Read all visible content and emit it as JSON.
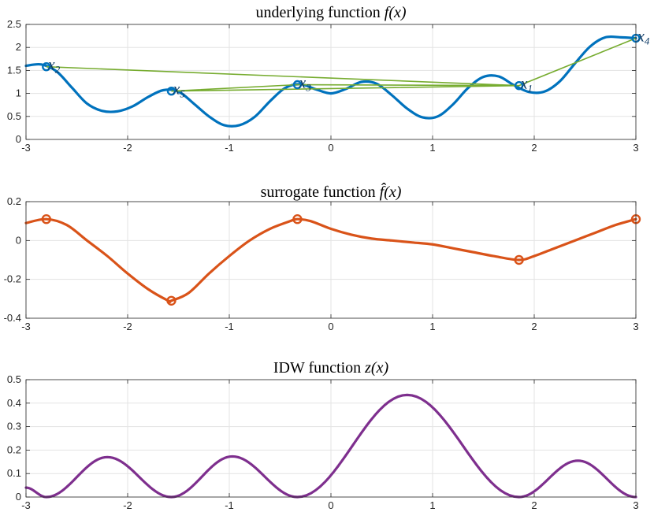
{
  "chart_data": [
    {
      "type": "line",
      "title": "underlying function",
      "title_math": "f(x)",
      "xlim": [
        -3,
        3
      ],
      "ylim": [
        0,
        2.5
      ],
      "xticks": [
        -3,
        -2,
        -1,
        0,
        1,
        2,
        3
      ],
      "yticks": [
        0,
        0.5,
        1,
        1.5,
        2,
        2.5
      ],
      "xtick_labels": [
        "-3",
        "-2",
        "-1",
        "0",
        "1",
        "2",
        "3"
      ],
      "ytick_labels": [
        "0",
        "0.5",
        "1",
        "1.5",
        "2",
        "2.5"
      ],
      "grid": true,
      "color": "#0072BD",
      "path_color": "#77AC30",
      "curve": {
        "x": [
          -3.0,
          -2.85,
          -2.7,
          -2.55,
          -2.4,
          -2.25,
          -2.1,
          -1.95,
          -1.8,
          -1.65,
          -1.5,
          -1.35,
          -1.2,
          -1.05,
          -0.9,
          -0.75,
          -0.6,
          -0.45,
          -0.3,
          -0.15,
          0.0,
          0.15,
          0.3,
          0.45,
          0.6,
          0.75,
          0.9,
          1.05,
          1.2,
          1.35,
          1.5,
          1.65,
          1.8,
          1.95,
          2.1,
          2.25,
          2.4,
          2.55,
          2.7,
          2.85,
          3.0
        ],
        "y": [
          1.6,
          1.63,
          1.48,
          1.13,
          0.78,
          0.62,
          0.61,
          0.72,
          0.92,
          1.07,
          1.04,
          0.78,
          0.5,
          0.31,
          0.31,
          0.49,
          0.83,
          1.12,
          1.2,
          1.09,
          1.0,
          1.1,
          1.25,
          1.21,
          0.96,
          0.67,
          0.48,
          0.5,
          0.76,
          1.12,
          1.36,
          1.37,
          1.18,
          1.03,
          1.04,
          1.26,
          1.65,
          2.02,
          2.22,
          2.22,
          2.2
        ]
      },
      "samples": [
        {
          "label": "x",
          "sub": "1",
          "x": 1.85,
          "y": 1.17
        },
        {
          "label": "x",
          "sub": "2",
          "x": -2.8,
          "y": 1.58
        },
        {
          "label": "x",
          "sub": "3",
          "x": -0.33,
          "y": 1.19
        },
        {
          "label": "x",
          "sub": "4",
          "x": 3.0,
          "y": 2.2
        },
        {
          "label": "x",
          "sub": "5",
          "x": -1.57,
          "y": 1.05
        }
      ],
      "path_order": [
        2,
        1,
        3,
        5,
        1,
        4
      ]
    },
    {
      "type": "line",
      "title": "surrogate function",
      "title_math": "f̂(x)",
      "xlim": [
        -3,
        3
      ],
      "ylim": [
        -0.4,
        0.2
      ],
      "xticks": [
        -3,
        -2,
        -1,
        0,
        1,
        2,
        3
      ],
      "yticks": [
        -0.4,
        -0.2,
        0,
        0.2
      ],
      "xtick_labels": [
        "-3",
        "-2",
        "-1",
        "0",
        "1",
        "2",
        "3"
      ],
      "ytick_labels": [
        "-0.4",
        "-0.2",
        "0",
        "0.2"
      ],
      "grid": true,
      "color": "#D95319",
      "curve": {
        "x": [
          -3.0,
          -2.8,
          -2.6,
          -2.4,
          -2.2,
          -2.0,
          -1.8,
          -1.6,
          -1.57,
          -1.4,
          -1.2,
          -1.0,
          -0.8,
          -0.6,
          -0.4,
          -0.33,
          -0.2,
          0.0,
          0.2,
          0.4,
          0.6,
          0.8,
          1.0,
          1.2,
          1.4,
          1.6,
          1.85,
          2.0,
          2.2,
          2.4,
          2.6,
          2.8,
          3.0
        ],
        "y": [
          0.09,
          0.11,
          0.08,
          0.0,
          -0.08,
          -0.17,
          -0.25,
          -0.31,
          -0.31,
          -0.27,
          -0.17,
          -0.08,
          0.0,
          0.06,
          0.1,
          0.11,
          0.1,
          0.06,
          0.03,
          0.01,
          0.0,
          -0.01,
          -0.02,
          -0.04,
          -0.06,
          -0.08,
          -0.1,
          -0.08,
          -0.04,
          0.0,
          0.04,
          0.08,
          0.11
        ]
      },
      "markers": [
        {
          "x": -2.8,
          "y": 0.11
        },
        {
          "x": -1.57,
          "y": -0.31
        },
        {
          "x": -0.33,
          "y": 0.11
        },
        {
          "x": 1.85,
          "y": -0.1
        },
        {
          "x": 3.0,
          "y": 0.11
        }
      ]
    },
    {
      "type": "line",
      "title": "IDW function",
      "title_math": "z(x)",
      "xlim": [
        -3,
        3
      ],
      "ylim": [
        0,
        0.5
      ],
      "xticks": [
        -3,
        -2,
        -1,
        0,
        1,
        2,
        3
      ],
      "yticks": [
        0,
        0.1,
        0.2,
        0.3,
        0.4,
        0.5
      ],
      "xtick_labels": [
        "-3",
        "-2",
        "-1",
        "0",
        "1",
        "2",
        "3"
      ],
      "ytick_labels": [
        "0",
        "0.1",
        "0.2",
        "0.3",
        "0.4",
        "0.5"
      ],
      "grid": true,
      "color": "#7E2F8E",
      "anchors": [
        {
          "x": -3.0,
          "y": 0.04
        },
        {
          "x": -2.8,
          "y": 0.0
        },
        {
          "x": -2.2,
          "y": 0.17
        },
        {
          "x": -1.57,
          "y": 0.0
        },
        {
          "x": -0.97,
          "y": 0.173
        },
        {
          "x": -0.33,
          "y": 0.0
        },
        {
          "x": 0.75,
          "y": 0.435
        },
        {
          "x": 1.85,
          "y": 0.0
        },
        {
          "x": 2.43,
          "y": 0.155
        },
        {
          "x": 3.0,
          "y": 0.0
        }
      ]
    }
  ]
}
